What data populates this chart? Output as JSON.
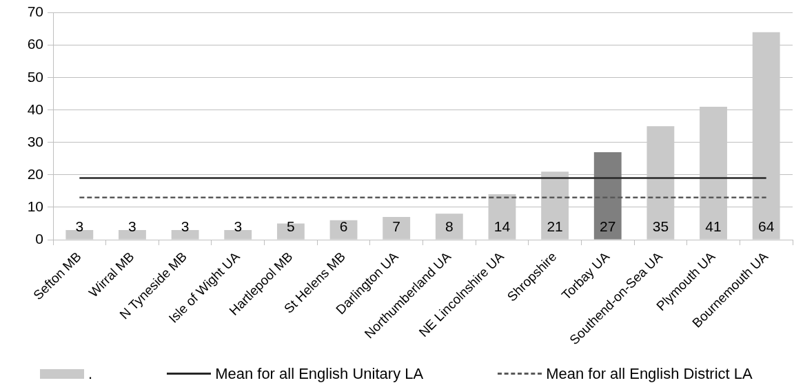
{
  "chart_data": {
    "type": "bar",
    "categories": [
      "Sefton MB",
      "Wirral MB",
      "N Tyneside MB",
      "Isle of Wight UA",
      "Hartlepool MB",
      "St Helens MB",
      "Darlington UA",
      "Northumberland UA",
      "NE Lincolnshire UA",
      "Shropshire",
      "Torbay UA",
      "Southend-on-Sea UA",
      "Plymouth UA",
      "Bournemouth UA"
    ],
    "series": [
      {
        "name": ".",
        "color": "#c9c9c9",
        "colors": [
          "#c9c9c9",
          "#c9c9c9",
          "#c9c9c9",
          "#c9c9c9",
          "#c9c9c9",
          "#c9c9c9",
          "#c9c9c9",
          "#c9c9c9",
          "#c9c9c9",
          "#c9c9c9",
          "#7f7f7f",
          "#c9c9c9",
          "#c9c9c9",
          "#c9c9c9"
        ],
        "values": [
          3,
          3,
          3,
          3,
          5,
          6,
          7,
          8,
          14,
          21,
          27,
          35,
          41,
          64
        ],
        "value_labels": [
          "3",
          "3",
          "3",
          "3",
          "5",
          "6",
          "7",
          "8",
          "14",
          "21",
          "27",
          "35",
          "41",
          "64"
        ]
      },
      {
        "name": "Mean for all English Unitary LA",
        "type": "line",
        "color": "#262626",
        "line_style": "solid",
        "values": [
          19,
          19,
          19,
          19,
          19,
          19,
          19,
          19,
          19,
          19,
          19,
          19,
          19,
          19
        ]
      },
      {
        "name": "Mean for all English District LA",
        "type": "line",
        "color": "#595959",
        "line_style": "dashed",
        "values": [
          13,
          13,
          13,
          13,
          13,
          13,
          13,
          13,
          13,
          13,
          13,
          13,
          13,
          13
        ]
      }
    ],
    "ylim": [
      0,
      70
    ],
    "yticks": [
      0,
      10,
      20,
      30,
      40,
      50,
      60,
      70
    ],
    "grid": "y",
    "legend": "bottom",
    "marker": "none"
  }
}
